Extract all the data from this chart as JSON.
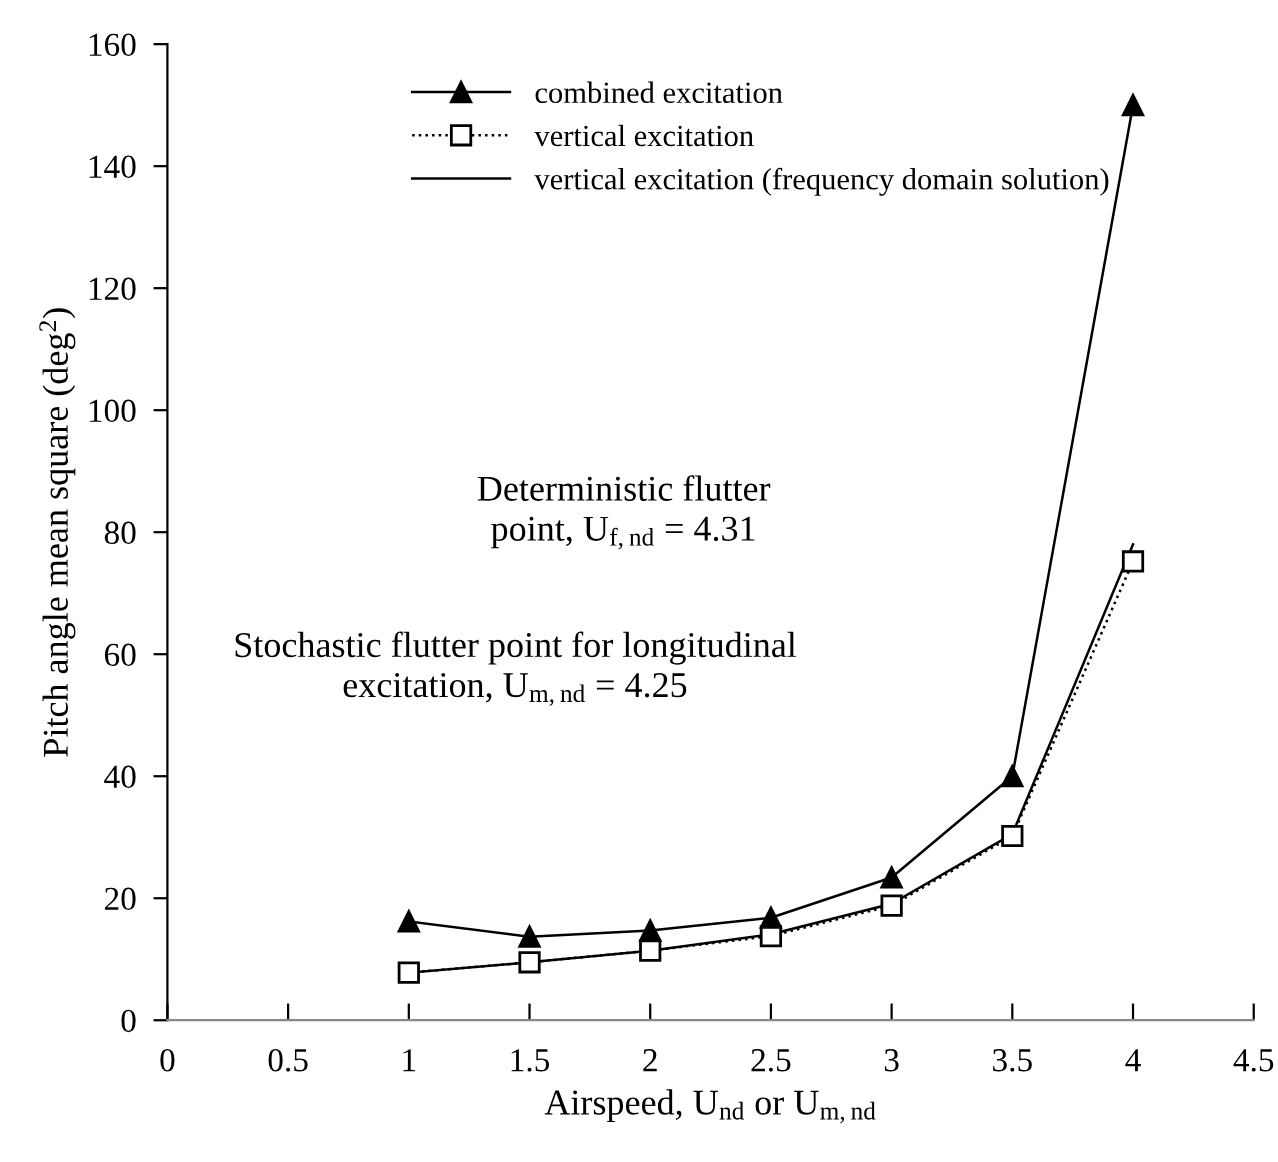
{
  "chart_data": {
    "type": "line",
    "xlabel": "Airspeed, U$_{nd}$ or U$_{m,nd}$",
    "ylabel": "Pitch angle mean square (deg$^{2}$)",
    "x": [
      1,
      1.5,
      2,
      2.5,
      3,
      3.5,
      4
    ],
    "series": [
      {
        "name": "combined excitation",
        "color": "#000000",
        "marker": "triangle",
        "line_style": "solid",
        "values": [
          16.2,
          13.7,
          14.7,
          16.8,
          23.4,
          40,
          150
        ]
      },
      {
        "name": "vertical excitation",
        "color": "#000000",
        "marker": "square",
        "line_style": "dotted",
        "values": [
          7.8,
          9.5,
          11.4,
          13.8,
          18.8,
          30.2,
          75.2
        ]
      },
      {
        "name": "vertical excitation (frequency domain solution)",
        "color": "#000000",
        "marker": "none",
        "line_style": "solid",
        "values": [
          7.8,
          9.5,
          11.4,
          14.1,
          19.1,
          30.5,
          78
        ]
      }
    ],
    "xlim": [
      0,
      4.5
    ],
    "xticks": [
      0,
      0.5,
      1,
      1.5,
      2,
      2.5,
      3,
      3.5,
      4,
      4.5
    ],
    "ylim": [
      0,
      160
    ],
    "yticks": [
      0,
      20,
      40,
      60,
      80,
      100,
      120,
      140,
      160
    ],
    "grid": false,
    "legend": "top",
    "annotations": [
      "Deterministic flutter\npoint, U$_{f,nd}$ = 4.31",
      "Stochastic flutter point for longitudinal\nexcitation, U$_{m,nd}$ = 4.25"
    ]
  }
}
